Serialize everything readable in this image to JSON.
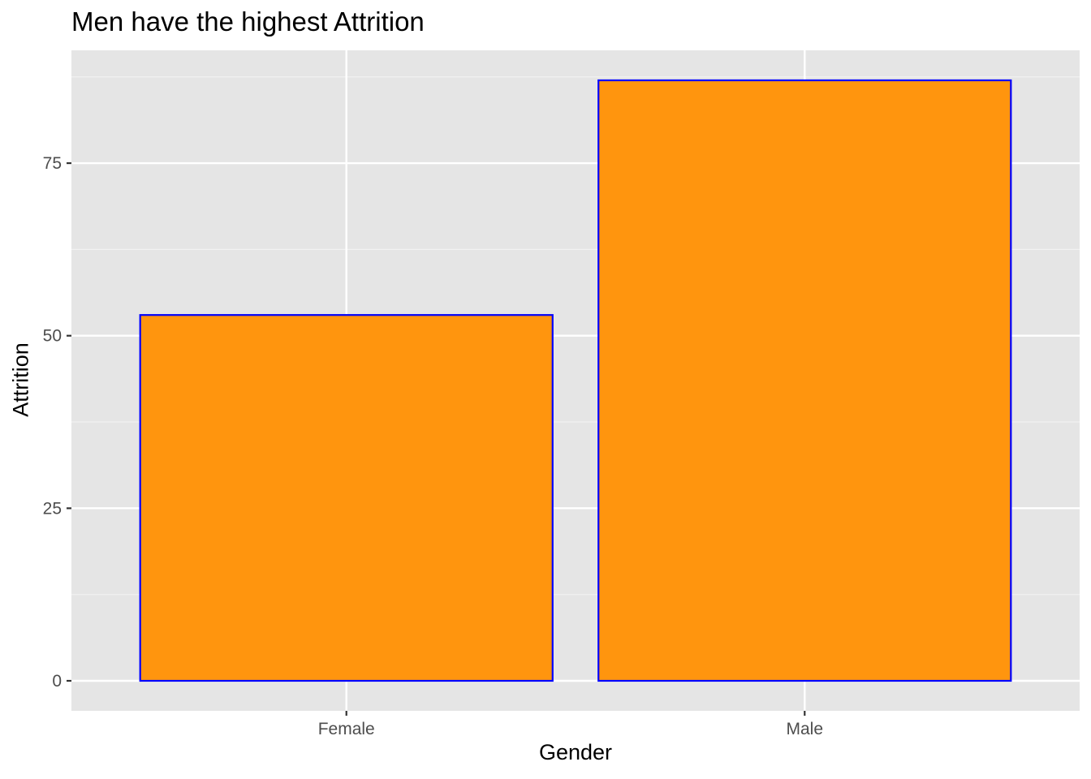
{
  "chart_data": {
    "type": "bar",
    "title": "Men have the highest Attrition",
    "xlabel": "Gender",
    "ylabel": "Attrition",
    "categories": [
      "Female",
      "Male"
    ],
    "values": [
      53,
      87
    ],
    "ylim": [
      -4.35,
      91.35
    ],
    "yticks": [
      0,
      25,
      50,
      75
    ],
    "ytick_labels": [
      "0",
      "25",
      "50",
      "75"
    ],
    "grid": true,
    "legend": "none",
    "colors": {
      "bar_fill": "#FF950E",
      "bar_outline": "#0000FF",
      "panel_background": "#E5E5E5",
      "grid_major": "#FFFFFF",
      "grid_minor": "#F2F2F2",
      "tick_text": "#4D4D4D",
      "tick_mark": "#333333"
    }
  }
}
